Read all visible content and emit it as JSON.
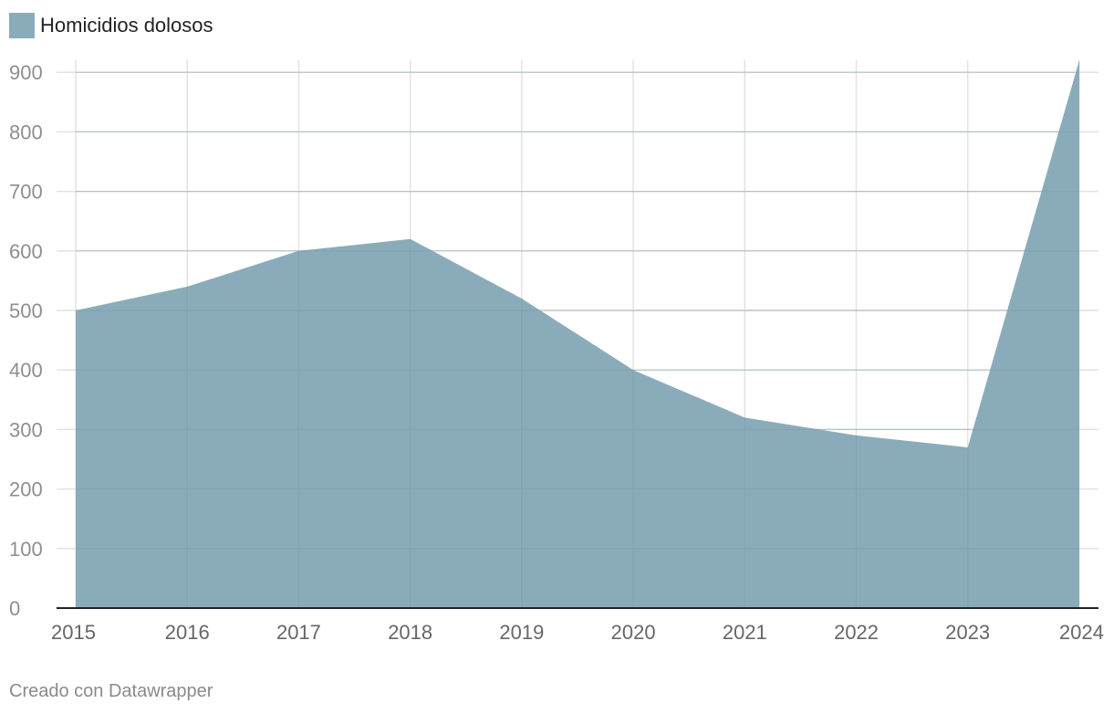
{
  "chart_data": {
    "type": "area",
    "title": "",
    "xlabel": "",
    "ylabel": "",
    "x": [
      "2015",
      "2016",
      "2017",
      "2018",
      "2019",
      "2020",
      "2021",
      "2022",
      "2023",
      "2024"
    ],
    "series": [
      {
        "name": "Homicidios dolosos",
        "values": [
          500,
          540,
          600,
          620,
          520,
          400,
          320,
          290,
          270,
          920
        ],
        "color": "#8aacba"
      }
    ],
    "ylim": [
      0,
      920
    ],
    "yticks": [
      "0",
      "100",
      "200",
      "300",
      "400",
      "500",
      "600",
      "700",
      "800",
      "900"
    ],
    "grid": true,
    "legend": "top-left"
  },
  "credit": "Creado con Datawrapper",
  "colors": {
    "grid": "#e2e2e2",
    "tick_text": "#8e8e8e",
    "axis": "#222222"
  }
}
